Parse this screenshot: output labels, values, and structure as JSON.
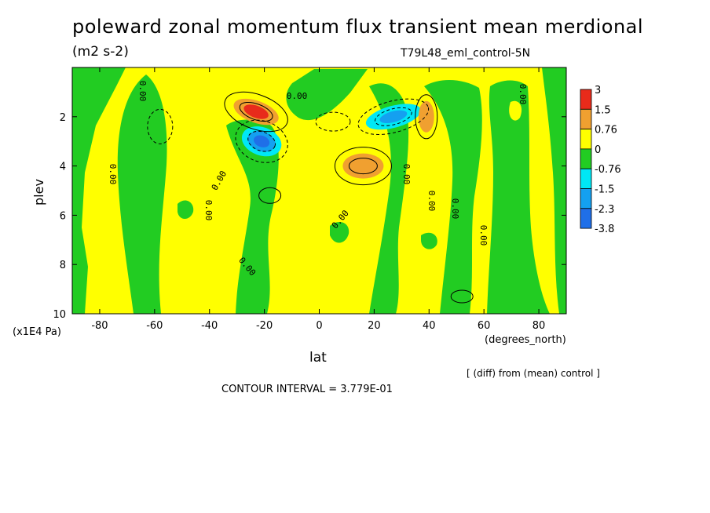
{
  "title": "poleward zonal momentum flux transient mean merdional",
  "units": "(m2 s-2)",
  "experiment": "T79L48_eml_control-5N",
  "diff_note": "[ (diff) from (mean) control ]",
  "contour_interval": "CONTOUR INTERVAL = 3.779E-01",
  "colors": {
    "c_neg38": "#1f6fe8",
    "c_neg23": "#14a0f0",
    "c_neg15": "#00e8f5",
    "c_neg076": "#22cc22",
    "c_0": "#ffff00",
    "c_076": "#f0a030",
    "c_15": "#e82b1b"
  },
  "chart_data": {
    "type": "contour",
    "xlabel": "lat",
    "x_units": "(degrees_north)",
    "ylabel": "plev",
    "y_units": "(x1E4 Pa)",
    "xlim": [
      -90,
      90
    ],
    "ylim": [
      10,
      0
    ],
    "x_ticks": [
      "-80",
      "-60",
      "-40",
      "-20",
      "0",
      "20",
      "40",
      "60",
      "80"
    ],
    "y_ticks": [
      "2",
      "4",
      "6",
      "8",
      "10"
    ],
    "colorbar_levels": [
      "3",
      "1.5",
      "0.76",
      "0",
      "-0.76",
      "-1.5",
      "-2.3",
      "-3.8"
    ],
    "contour_labels": [
      "0.00",
      "0.00",
      "0.00",
      "0.00",
      "0.00",
      "0.00",
      "0.00",
      "0.00",
      "0.00",
      "0.00",
      "0.00"
    ],
    "features": [
      {
        "lat": -23,
        "plev": 1.8,
        "value": 3.0
      },
      {
        "lat": -21,
        "plev": 3.0,
        "value": -3.8
      },
      {
        "lat": 27,
        "plev": 2.0,
        "value": -2.3
      },
      {
        "lat": 39,
        "plev": 2.0,
        "value": 1.5
      },
      {
        "lat": 16,
        "plev": 4.0,
        "value": 1.5
      },
      {
        "lat": -85,
        "plev": 3.0,
        "value": -0.76
      },
      {
        "lat": -55,
        "plev": 4.0,
        "value": -0.76
      },
      {
        "lat": -33,
        "plev": 5.0,
        "value": -0.76
      },
      {
        "lat": 0,
        "plev": 2.5,
        "value": -0.76
      },
      {
        "lat": 34,
        "plev": 5.0,
        "value": -0.76
      },
      {
        "lat": 52,
        "plev": 4.0,
        "value": -0.76
      },
      {
        "lat": 78,
        "plev": 4.0,
        "value": -0.76
      }
    ]
  }
}
